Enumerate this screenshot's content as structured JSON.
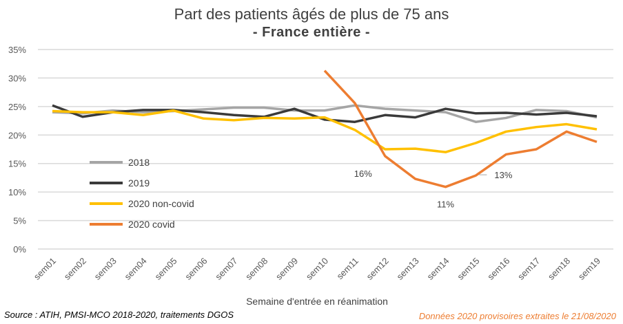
{
  "chart_data": {
    "type": "line",
    "title": "Part des patients âgés de plus de 75 ans",
    "subtitle": "- France entière -",
    "xlabel": "Semaine d'entrée en réanimation",
    "ylabel": "",
    "ylim": [
      0,
      35
    ],
    "yticks": [
      "0%",
      "5%",
      "10%",
      "15%",
      "20%",
      "25%",
      "30%",
      "35%"
    ],
    "categories": [
      "sem01",
      "sem02",
      "sem03",
      "sem04",
      "sem05",
      "sem06",
      "sem07",
      "sem08",
      "sem09",
      "sem10",
      "sem11",
      "sem12",
      "sem13",
      "sem14",
      "sem15",
      "sem16",
      "sem17",
      "sem18",
      "sem19"
    ],
    "grid": true,
    "legend": "left",
    "series": [
      {
        "name": "2018",
        "color": "#A5A5A5",
        "values": [
          24.0,
          23.8,
          24.3,
          24.0,
          24.2,
          24.5,
          24.8,
          24.8,
          24.3,
          24.3,
          25.2,
          24.6,
          24.3,
          24.0,
          22.3,
          23.0,
          24.4,
          24.2,
          23.1
        ]
      },
      {
        "name": "2019",
        "color": "#3A3A3A",
        "values": [
          25.2,
          23.2,
          24.0,
          24.4,
          24.4,
          24.0,
          23.5,
          23.2,
          24.6,
          22.7,
          22.3,
          23.5,
          23.1,
          24.6,
          23.8,
          23.9,
          23.6,
          23.9,
          23.3
        ]
      },
      {
        "name": "2020 non-covid",
        "color": "#FFC000",
        "values": [
          24.2,
          24.0,
          24.0,
          23.5,
          24.3,
          22.9,
          22.6,
          23.0,
          22.9,
          23.1,
          20.9,
          17.5,
          17.6,
          17.0,
          18.6,
          20.6,
          21.4,
          21.9,
          21.0
        ]
      },
      {
        "name": "2020 covid",
        "color": "#ED7D31",
        "values": [
          null,
          null,
          null,
          null,
          null,
          null,
          null,
          null,
          null,
          31.3,
          25.6,
          16.3,
          12.3,
          10.9,
          12.9,
          16.6,
          17.5,
          20.6,
          18.8
        ]
      }
    ],
    "annotations": [
      {
        "category": "sem12",
        "text": "16%"
      },
      {
        "category": "sem14",
        "text": "11%"
      },
      {
        "category": "sem15",
        "text": "13%"
      }
    ]
  },
  "source": "Source : ATIH, PMSI-MCO 2018-2020, traitements DGOS",
  "note": "Données 2020 provisoires extraites le 21/08/2020"
}
